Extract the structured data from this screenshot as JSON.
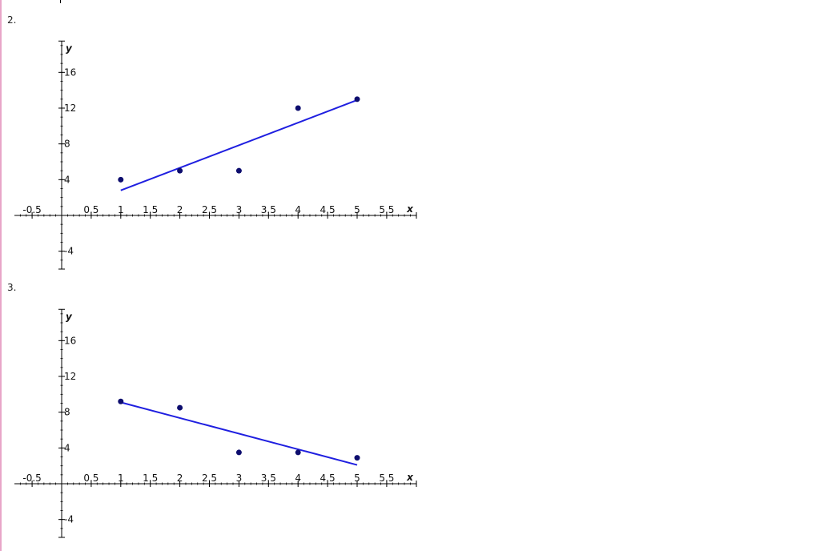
{
  "problems": [
    {
      "number_label": "2.",
      "chart_data": {
        "type": "scatter",
        "xlabel": "x",
        "ylabel": "y",
        "xlim": [
          -0.8,
          6.0
        ],
        "ylim": [
          -6.0,
          19.5
        ],
        "x_ticks": [
          -0.5,
          0.5,
          1,
          1.5,
          2,
          2.5,
          3,
          3.5,
          4,
          4.5,
          5,
          5.5
        ],
        "x_tick_labels": [
          "-0.5",
          "0.5",
          "1",
          "1.5",
          "2",
          "2.5",
          "3",
          "3.5",
          "4",
          "4.5",
          "5",
          "5.5"
        ],
        "y_ticks": [
          -4,
          4,
          8,
          12,
          16
        ],
        "y_tick_labels": [
          "-4",
          "4",
          "8",
          "12",
          "16"
        ],
        "points": {
          "x": [
            1,
            2,
            3,
            4,
            5
          ],
          "y": [
            4,
            5,
            5,
            12,
            13
          ]
        },
        "regression_line": {
          "x": [
            1,
            5
          ],
          "y": [
            2.8,
            12.9
          ]
        },
        "grid": false,
        "colors": {
          "points": "#0d0d6e",
          "line": "#1f1fe0"
        }
      }
    },
    {
      "number_label": "3.",
      "chart_data": {
        "type": "scatter",
        "xlabel": "x",
        "ylabel": "y",
        "xlim": [
          -0.8,
          6.0
        ],
        "ylim": [
          -6.0,
          19.5
        ],
        "x_ticks": [
          -0.5,
          0.5,
          1,
          1.5,
          2,
          2.5,
          3,
          3.5,
          4,
          4.5,
          5,
          5.5
        ],
        "x_tick_labels": [
          "-0.5",
          "0.5",
          "1",
          "1.5",
          "2",
          "2.5",
          "3",
          "3.5",
          "4",
          "4.5",
          "5",
          "5.5"
        ],
        "y_ticks": [
          -4,
          4,
          8,
          12,
          16
        ],
        "y_tick_labels": [
          "-4",
          "4",
          "8",
          "12",
          "16"
        ],
        "points": {
          "x": [
            1,
            2,
            3,
            4,
            5
          ],
          "y": [
            9.2,
            8.5,
            3.5,
            3.5,
            2.9
          ]
        },
        "regression_line": {
          "x": [
            1,
            5
          ],
          "y": [
            9.1,
            2.1
          ]
        },
        "grid": false,
        "colors": {
          "points": "#0d0d6e",
          "line": "#1f1fe0"
        }
      }
    }
  ]
}
